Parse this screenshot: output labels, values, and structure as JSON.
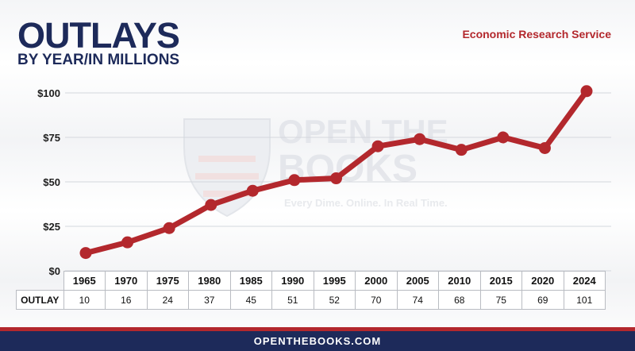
{
  "header": {
    "title": "OUTLAYS",
    "subtitle": "BY YEAR/IN MILLIONS",
    "source": "Economic Research Service"
  },
  "watermark": {
    "line1": "OPEN THE",
    "line2": "BOOKS",
    "tagline": "Every Dime. Online. In Real Time."
  },
  "chart_data": {
    "type": "line",
    "title": "OUTLAYS",
    "subtitle": "BY YEAR/IN MILLIONS",
    "x": [
      "1965",
      "1970",
      "1975",
      "1980",
      "1985",
      "1990",
      "1995",
      "2000",
      "2005",
      "2010",
      "2015",
      "2020",
      "2024"
    ],
    "values": [
      10,
      16,
      24,
      37,
      45,
      51,
      52,
      70,
      74,
      68,
      75,
      69,
      101
    ],
    "ylim": [
      0,
      100
    ],
    "yticks": [
      0,
      25,
      50,
      75,
      100
    ],
    "ytick_labels": [
      "$0",
      "$25",
      "$50",
      "$75",
      "$100"
    ],
    "grid": true,
    "line_color": "#b3282d",
    "table_row_label": "OUTLAY"
  },
  "footer": {
    "text": "OPENTHEBOOKS.COM"
  },
  "colors": {
    "navy": "#1d2a5a",
    "red": "#b3282d"
  }
}
